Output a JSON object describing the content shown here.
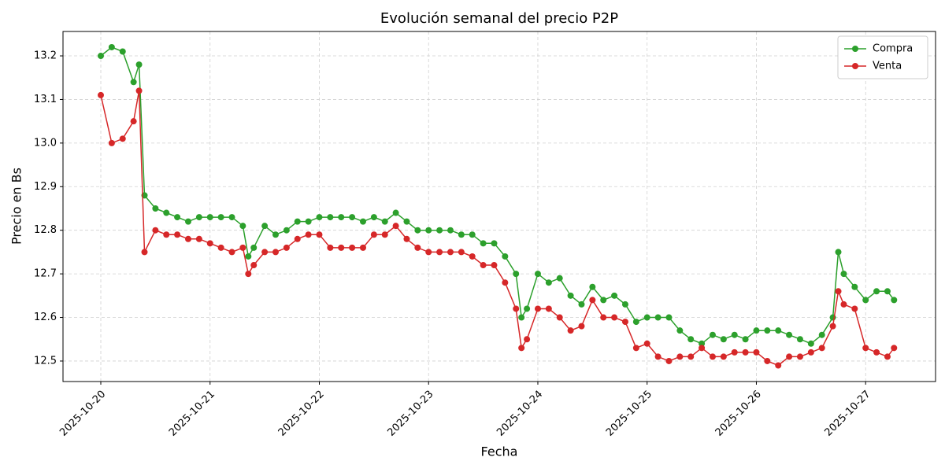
{
  "chart_data": {
    "type": "line",
    "title": "Evolución semanal del precio P2P",
    "xlabel": "Fecha",
    "ylabel": "Precio en Bs",
    "x": [
      0,
      0.1,
      0.2,
      0.3,
      0.35,
      0.4,
      0.5,
      0.6,
      0.7,
      0.8,
      0.9,
      1.0,
      1.1,
      1.2,
      1.3,
      1.35,
      1.4,
      1.5,
      1.6,
      1.7,
      1.8,
      1.9,
      2.0,
      2.1,
      2.2,
      2.3,
      2.4,
      2.5,
      2.6,
      2.7,
      2.8,
      2.9,
      3.0,
      3.1,
      3.2,
      3.3,
      3.4,
      3.5,
      3.6,
      3.7,
      3.8,
      3.85,
      3.9,
      4.0,
      4.1,
      4.2,
      4.3,
      4.4,
      4.5,
      4.6,
      4.7,
      4.8,
      4.9,
      5.0,
      5.1,
      5.2,
      5.3,
      5.4,
      5.5,
      5.6,
      5.7,
      5.8,
      5.9,
      6.0,
      6.1,
      6.2,
      6.3,
      6.4,
      6.5,
      6.6,
      6.7,
      6.75,
      6.8,
      6.9,
      7.0,
      7.1,
      7.2,
      7.26
    ],
    "series": [
      {
        "name": "Compra",
        "color": "#2ca02c",
        "values": [
          13.2,
          13.22,
          13.21,
          13.14,
          13.18,
          12.88,
          12.85,
          12.84,
          12.83,
          12.82,
          12.83,
          12.83,
          12.83,
          12.83,
          12.81,
          12.74,
          12.76,
          12.81,
          12.79,
          12.8,
          12.82,
          12.82,
          12.83,
          12.83,
          12.83,
          12.83,
          12.82,
          12.83,
          12.82,
          12.84,
          12.82,
          12.8,
          12.8,
          12.8,
          12.8,
          12.79,
          12.79,
          12.77,
          12.77,
          12.74,
          12.7,
          12.6,
          12.62,
          12.7,
          12.68,
          12.69,
          12.65,
          12.63,
          12.67,
          12.64,
          12.65,
          12.63,
          12.59,
          12.6,
          12.6,
          12.6,
          12.57,
          12.55,
          12.54,
          12.56,
          12.55,
          12.56,
          12.55,
          12.57,
          12.57,
          12.57,
          12.56,
          12.55,
          12.54,
          12.56,
          12.6,
          12.75,
          12.7,
          12.67,
          12.64,
          12.66,
          12.66,
          12.64
        ]
      },
      {
        "name": "Venta",
        "color": "#d62728",
        "values": [
          13.11,
          13.0,
          13.01,
          13.05,
          13.12,
          12.75,
          12.8,
          12.79,
          12.79,
          12.78,
          12.78,
          12.77,
          12.76,
          12.75,
          12.76,
          12.7,
          12.72,
          12.75,
          12.75,
          12.76,
          12.78,
          12.79,
          12.79,
          12.76,
          12.76,
          12.76,
          12.76,
          12.79,
          12.79,
          12.81,
          12.78,
          12.76,
          12.75,
          12.75,
          12.75,
          12.75,
          12.74,
          12.72,
          12.72,
          12.68,
          12.62,
          12.53,
          12.55,
          12.62,
          12.62,
          12.6,
          12.57,
          12.58,
          12.64,
          12.6,
          12.6,
          12.59,
          12.53,
          12.54,
          12.51,
          12.5,
          12.51,
          12.51,
          12.53,
          12.51,
          12.51,
          12.52,
          12.52,
          12.52,
          12.5,
          12.49,
          12.51,
          12.51,
          12.52,
          12.53,
          12.58,
          12.66,
          12.63,
          12.62,
          12.53,
          12.52,
          12.51,
          12.53
        ]
      }
    ],
    "xlim": [
      -0.346,
      7.64
    ],
    "xticks": [
      {
        "value": 0,
        "label": "2025-10-20"
      },
      {
        "value": 1,
        "label": "2025-10-21"
      },
      {
        "value": 2,
        "label": "2025-10-22"
      },
      {
        "value": 3,
        "label": "2025-10-23"
      },
      {
        "value": 4,
        "label": "2025-10-24"
      },
      {
        "value": 5,
        "label": "2025-10-25"
      },
      {
        "value": 6,
        "label": "2025-10-26"
      },
      {
        "value": 7,
        "label": "2025-10-27"
      }
    ],
    "ylim": [
      12.453,
      13.256
    ],
    "yticks": [
      12.5,
      12.6,
      12.7,
      12.8,
      12.9,
      {
        "value": 13,
        "label": "13.0"
      },
      13.1,
      13.2
    ],
    "grid": true,
    "legend": "upper right"
  }
}
